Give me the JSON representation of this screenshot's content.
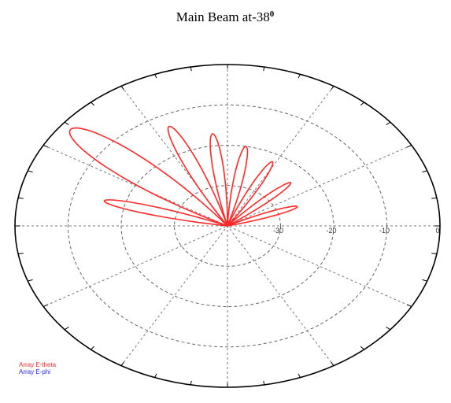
{
  "chart_data": {
    "type": "polar",
    "title": "Main Beam at-38",
    "title_superscript": "0",
    "r_tick_labels": [
      "-30",
      "-20",
      "-10",
      "0"
    ],
    "r_ticks": [
      -30,
      -20,
      -10,
      0
    ],
    "r_range": [
      -40,
      0
    ],
    "grid": true,
    "angle_zero_direction": "right",
    "legend_position": "bottom-left",
    "series": [
      {
        "name": "Array E-theta",
        "color": "#ff2a2a",
        "lobes": [
          {
            "peak_angle_deg": 141,
            "peak_db": -2,
            "half_width_deg": 13
          },
          {
            "peak_angle_deg": 114,
            "peak_db": -13,
            "half_width_deg": 8
          },
          {
            "peak_angle_deg": 97,
            "peak_db": -17,
            "half_width_deg": 7
          },
          {
            "peak_angle_deg": 80,
            "peak_db": -20,
            "half_width_deg": 7
          },
          {
            "peak_angle_deg": 62,
            "peak_db": -22,
            "half_width_deg": 7
          },
          {
            "peak_angle_deg": 42,
            "peak_db": -24,
            "half_width_deg": 7
          },
          {
            "peak_angle_deg": 20,
            "peak_db": -26,
            "half_width_deg": 7
          },
          {
            "peak_angle_deg": 165,
            "peak_db": -16,
            "half_width_deg": 7
          }
        ]
      },
      {
        "name": "Array E-phi",
        "color": "#2a2aff",
        "lobes": []
      }
    ]
  }
}
